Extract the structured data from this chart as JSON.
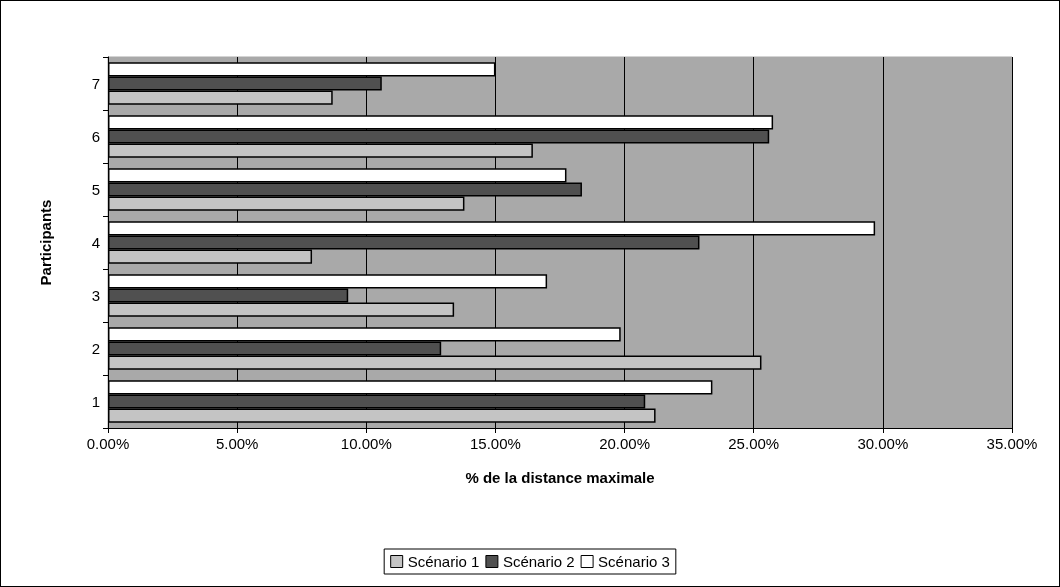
{
  "chart_data": {
    "type": "bar",
    "orientation": "horizontal",
    "xlabel": "% de la distance maximale",
    "ylabel": "Participants",
    "categories": [
      "7",
      "6",
      "5",
      "4",
      "3",
      "2",
      "1"
    ],
    "series": [
      {
        "name": "Scénario 1",
        "color": "#c4c4c4",
        "values": [
          8.7,
          16.45,
          13.8,
          7.9,
          13.4,
          25.3,
          21.2
        ]
      },
      {
        "name": "Scénario 2",
        "color": "#505050",
        "values": [
          10.6,
          25.6,
          18.35,
          22.9,
          9.3,
          12.9,
          20.8
        ]
      },
      {
        "name": "Scénario 3",
        "color": "#ffffff",
        "values": [
          15.0,
          25.75,
          17.75,
          29.7,
          17.0,
          19.85,
          23.4
        ]
      }
    ],
    "xlim": [
      0,
      35
    ],
    "xticks": [
      {
        "value": 0,
        "label": "0.00%"
      },
      {
        "value": 5,
        "label": "5.00%"
      },
      {
        "value": 10,
        "label": "10.00%"
      },
      {
        "value": 15,
        "label": "15.00%"
      },
      {
        "value": 20,
        "label": "20.00%"
      },
      {
        "value": 25,
        "label": "25.00%"
      },
      {
        "value": 30,
        "label": "30.00%"
      },
      {
        "value": 35,
        "label": "35.00%"
      }
    ],
    "grid": "x",
    "legend": "bottom"
  }
}
